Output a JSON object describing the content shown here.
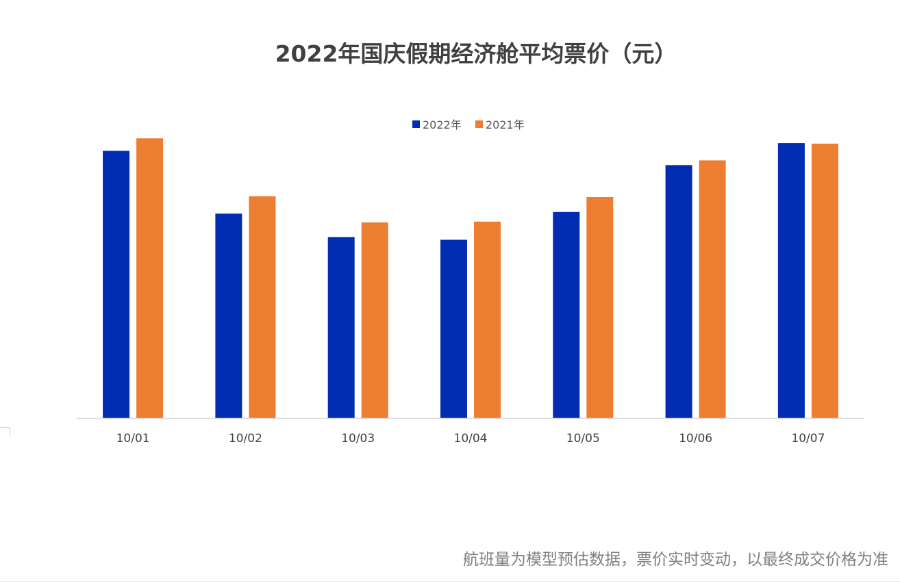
{
  "chart_data": {
    "type": "bar",
    "title": "2022年国庆假期经济舱平均票价（元）",
    "categories": [
      "10/01",
      "10/02",
      "10/03",
      "10/04",
      "10/05",
      "10/06",
      "10/07"
    ],
    "series": [
      {
        "name": "2022年",
        "color": "#002DB2",
        "values": [
          970,
          742,
          657,
          647,
          748,
          918,
          998
        ]
      },
      {
        "name": "2021年",
        "color": "#ED7D31",
        "values": [
          1015,
          805,
          710,
          713,
          802,
          935,
          996
        ]
      }
    ],
    "ylim": [
      0,
      1100
    ],
    "legend_position": "top-center",
    "grid": false
  },
  "footnote": "航班量为模型预估数据，票价实时变动，以最终成交价格为准"
}
